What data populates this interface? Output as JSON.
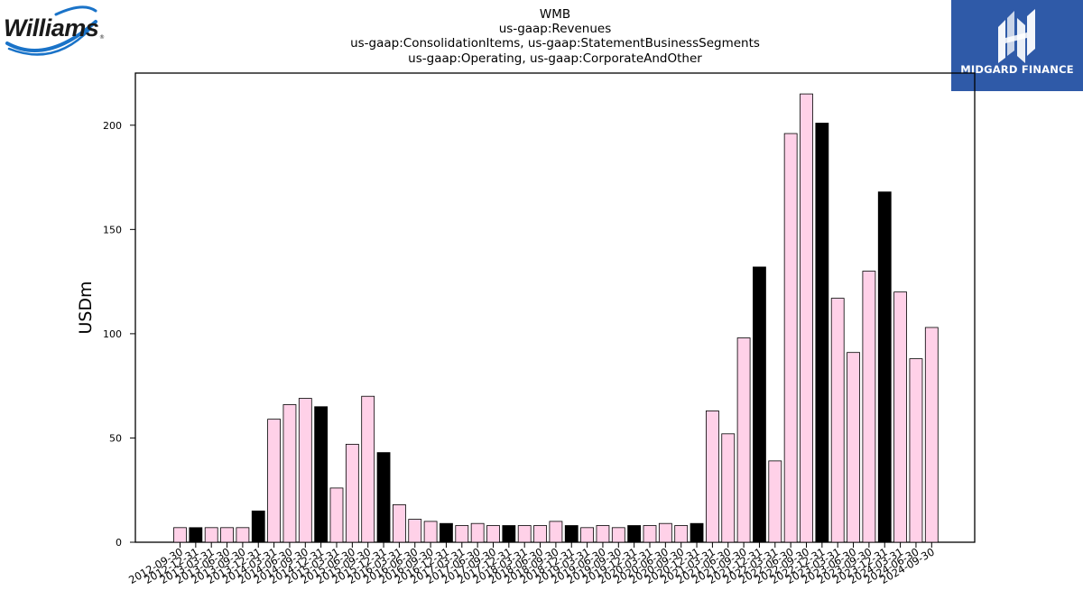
{
  "branding": {
    "left_logo_text": "Williams",
    "right_logo_text": "MIDGARD FINANCE",
    "right_logo_color": "#2f5aa8"
  },
  "chart_data": {
    "type": "bar",
    "title_lines": [
      "WMB",
      "us-gaap:Revenues",
      "us-gaap:ConsolidationItems, us-gaap:StatementBusinessSegments",
      "us-gaap:Operating, us-gaap:CorporateAndOther"
    ],
    "xlabel": "",
    "ylabel": "USDm",
    "ylim": [
      0,
      225
    ],
    "yticks": [
      0,
      50,
      100,
      150,
      200
    ],
    "grid": false,
    "colors": {
      "regular": "#ffd1e8",
      "highlight": "#000000",
      "edge": "#000000"
    },
    "categories": [
      "2012-09-30",
      "2012-12-31",
      "2013-03-31",
      "2013-06-30",
      "2013-09-30",
      "2013-12-31",
      "2014-03-31",
      "2014-06-30",
      "2014-09-30",
      "2014-12-31",
      "2015-03-31",
      "2015-06-30",
      "2015-09-30",
      "2015-12-31",
      "2016-03-31",
      "2016-06-30",
      "2016-09-30",
      "2016-12-31",
      "2017-03-31",
      "2017-06-30",
      "2017-09-30",
      "2017-12-31",
      "2018-03-31",
      "2018-06-30",
      "2018-09-30",
      "2018-12-31",
      "2019-03-31",
      "2019-06-30",
      "2019-09-30",
      "2019-12-31",
      "2020-03-31",
      "2020-06-30",
      "2020-09-30",
      "2020-12-31",
      "2021-03-31",
      "2021-06-30",
      "2021-09-30",
      "2021-12-31",
      "2022-03-31",
      "2022-06-30",
      "2022-09-30",
      "2022-12-31",
      "2023-03-31",
      "2023-06-30",
      "2023-09-30",
      "2023-12-31",
      "2024-03-31",
      "2024-06-30",
      "2024-09-30"
    ],
    "values": [
      7,
      7,
      7,
      7,
      7,
      15,
      59,
      66,
      69,
      65,
      26,
      47,
      70,
      43,
      18,
      11,
      10,
      9,
      8,
      9,
      8,
      8,
      8,
      8,
      10,
      8,
      7,
      8,
      7,
      8,
      8,
      9,
      8,
      9,
      63,
      52,
      98,
      132,
      39,
      196,
      215,
      201,
      117,
      91,
      130,
      168,
      120,
      88,
      103
    ],
    "highlight": [
      false,
      true,
      false,
      false,
      false,
      true,
      false,
      false,
      false,
      true,
      false,
      false,
      false,
      true,
      false,
      false,
      false,
      true,
      false,
      false,
      false,
      true,
      false,
      false,
      false,
      true,
      false,
      false,
      false,
      true,
      false,
      false,
      false,
      true,
      false,
      false,
      false,
      true,
      false,
      false,
      false,
      true,
      false,
      false,
      false,
      true,
      false,
      false,
      false
    ]
  }
}
